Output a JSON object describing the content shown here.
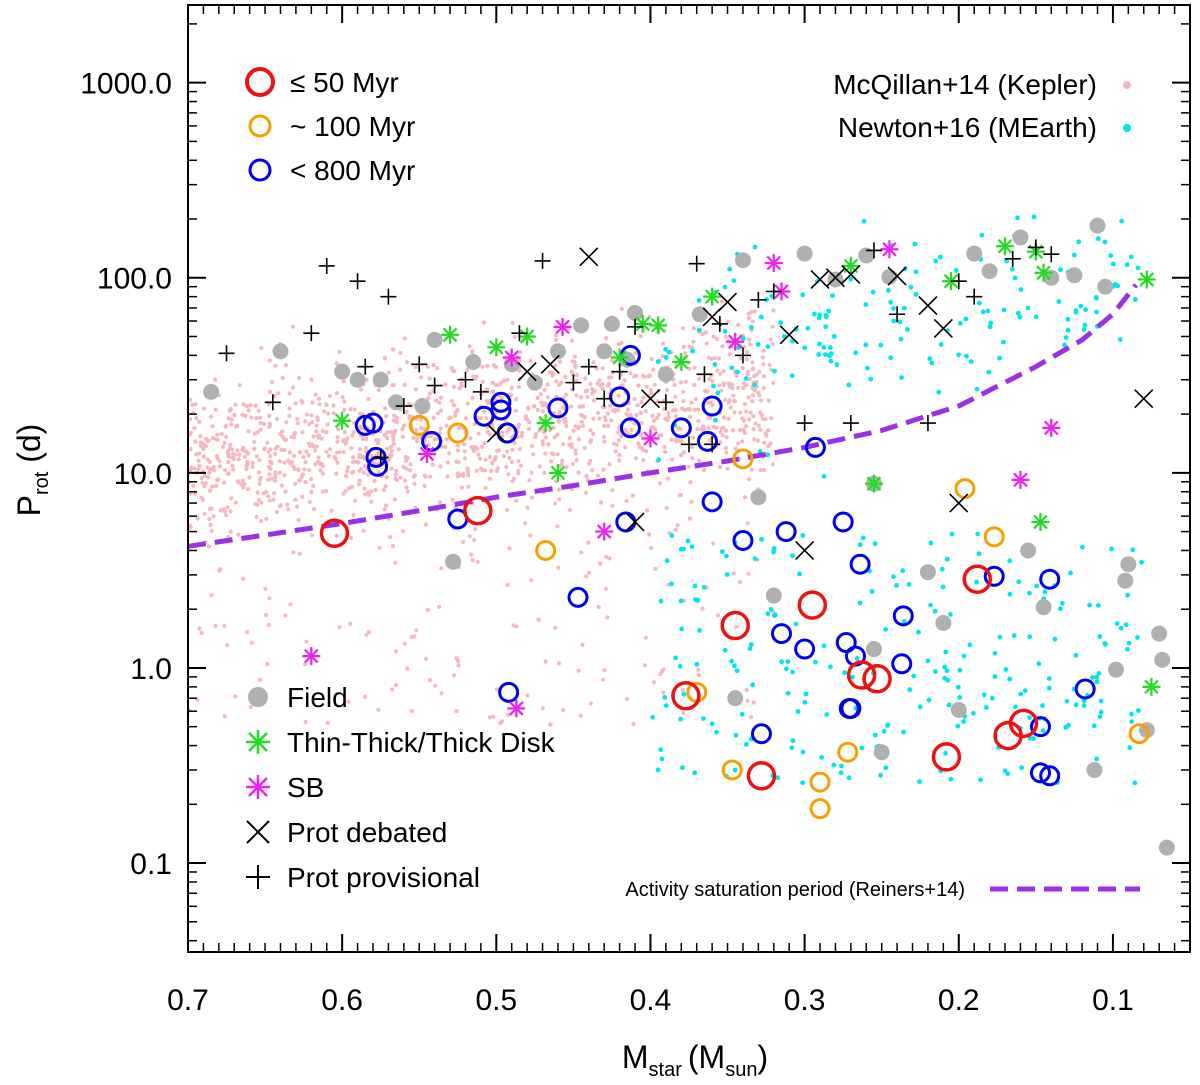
{
  "chart_data": {
    "type": "scatter",
    "xlabel": {
      "main": "M",
      "sub1": "star",
      "paren": "(M",
      "sub2": "sun",
      "close": ")"
    },
    "ylabel": {
      "main": "P",
      "sub": "rot",
      "rest": " (d)"
    },
    "x_axis": {
      "reversed": true,
      "min": 0.05,
      "max": 0.7,
      "ticks": [
        "0.7",
        "0.6",
        "0.5",
        "0.4",
        "0.3",
        "0.2",
        "0.1"
      ]
    },
    "y_axis": {
      "scale": "log",
      "min": 0.035,
      "max": 2500,
      "ticks": [
        "0.1",
        "1.0",
        "10.0",
        "100.0",
        "1000.0"
      ]
    },
    "grid": false,
    "legends": {
      "age": [
        {
          "label": "≤ 50 Myr",
          "color": "#ee1111"
        },
        {
          "label": "~ 100 Myr",
          "color": "#f5a000"
        },
        {
          "label": "< 800 Myr",
          "color": "#0000ee"
        }
      ],
      "reference": [
        {
          "label": "McQillan+14 (Kepler)",
          "color": "#f5b8c0"
        },
        {
          "label": "Newton+16 (MEarth)",
          "color": "#00e5ee"
        }
      ],
      "markers": [
        {
          "label": "Field",
          "color": "#b0b0b0"
        },
        {
          "label": "Thin-Thick/Thick Disk",
          "color": "#22dd22"
        },
        {
          "label": "SB",
          "color": "#ee22ee"
        },
        {
          "label": "Prot debated",
          "color": "#000000"
        },
        {
          "label": "Prot provisional",
          "color": "#000000"
        }
      ],
      "saturation": {
        "label": "Activity saturation period (Reiners+14)",
        "color": "#9b30e8"
      }
    },
    "saturation_curve": {
      "x": [
        0.7,
        0.65,
        0.6,
        0.55,
        0.5,
        0.45,
        0.4,
        0.35,
        0.3,
        0.25,
        0.2,
        0.15,
        0.12,
        0.1,
        0.085
      ],
      "y": [
        4.2,
        4.8,
        5.5,
        6.4,
        7.5,
        8.6,
        10.0,
        11.5,
        13.5,
        16.5,
        22,
        35,
        48,
        65,
        92
      ]
    },
    "series": [
      {
        "name": "≤ 50 Myr",
        "marker": "circle-large",
        "color": "#ee1111",
        "points": [
          [
            0.605,
            4.9
          ],
          [
            0.512,
            6.4
          ],
          [
            0.377,
            0.72
          ],
          [
            0.345,
            1.65
          ],
          [
            0.328,
            0.28
          ],
          [
            0.295,
            2.1
          ],
          [
            0.263,
            0.92
          ],
          [
            0.253,
            0.88
          ],
          [
            0.208,
            0.35
          ],
          [
            0.188,
            2.85
          ],
          [
            0.168,
            0.45
          ],
          [
            0.158,
            0.52
          ]
        ]
      },
      {
        "name": "~ 100 Myr",
        "marker": "circle",
        "color": "#f5a000",
        "points": [
          [
            0.55,
            17.5
          ],
          [
            0.525,
            16
          ],
          [
            0.468,
            4.0
          ],
          [
            0.37,
            0.75
          ],
          [
            0.347,
            0.3
          ],
          [
            0.34,
            11.8
          ],
          [
            0.29,
            0.26
          ],
          [
            0.29,
            0.19
          ],
          [
            0.272,
            0.37
          ],
          [
            0.196,
            8.3
          ],
          [
            0.177,
            4.7
          ],
          [
            0.083,
            0.46
          ]
        ]
      },
      {
        "name": "< 800 Myr",
        "marker": "circle",
        "color": "#0000ee",
        "points": [
          [
            0.585,
            17.5
          ],
          [
            0.58,
            18
          ],
          [
            0.578,
            12
          ],
          [
            0.577,
            10.8
          ],
          [
            0.542,
            14.5
          ],
          [
            0.525,
            5.8
          ],
          [
            0.508,
            19.5
          ],
          [
            0.497,
            23
          ],
          [
            0.497,
            21
          ],
          [
            0.493,
            16
          ],
          [
            0.492,
            0.75
          ],
          [
            0.46,
            21.5
          ],
          [
            0.447,
            2.3
          ],
          [
            0.42,
            24.5
          ],
          [
            0.416,
            5.6
          ],
          [
            0.413,
            17
          ],
          [
            0.413,
            40
          ],
          [
            0.38,
            17
          ],
          [
            0.363,
            14.5
          ],
          [
            0.36,
            7.1
          ],
          [
            0.36,
            22
          ],
          [
            0.34,
            4.5
          ],
          [
            0.328,
            0.46
          ],
          [
            0.315,
            1.5
          ],
          [
            0.312,
            5
          ],
          [
            0.3,
            1.25
          ],
          [
            0.293,
            13.5
          ],
          [
            0.275,
            5.6
          ],
          [
            0.273,
            1.35
          ],
          [
            0.271,
            0.62
          ],
          [
            0.27,
            0.62
          ],
          [
            0.267,
            1.15
          ],
          [
            0.264,
            3.4
          ],
          [
            0.237,
            1.05
          ],
          [
            0.236,
            1.85
          ],
          [
            0.177,
            2.95
          ],
          [
            0.147,
            0.29
          ],
          [
            0.147,
            0.5
          ],
          [
            0.141,
            0.28
          ],
          [
            0.141,
            2.85
          ],
          [
            0.118,
            0.78
          ]
        ]
      },
      {
        "name": "Field",
        "marker": "filled-circle",
        "color": "#b0b0b0",
        "points": [
          [
            0.685,
            26
          ],
          [
            0.64,
            42
          ],
          [
            0.6,
            33
          ],
          [
            0.59,
            30
          ],
          [
            0.575,
            30
          ],
          [
            0.565,
            23
          ],
          [
            0.548,
            22
          ],
          [
            0.54,
            48
          ],
          [
            0.515,
            37
          ],
          [
            0.49,
            36
          ],
          [
            0.475,
            29
          ],
          [
            0.46,
            42
          ],
          [
            0.445,
            57
          ],
          [
            0.43,
            42
          ],
          [
            0.425,
            58
          ],
          [
            0.415,
            38
          ],
          [
            0.41,
            66
          ],
          [
            0.39,
            32
          ],
          [
            0.368,
            65
          ],
          [
            0.34,
            123
          ],
          [
            0.33,
            7.5
          ],
          [
            0.32,
            2.35
          ],
          [
            0.3,
            133
          ],
          [
            0.28,
            98
          ],
          [
            0.26,
            130
          ],
          [
            0.255,
            1.25
          ],
          [
            0.25,
            0.37
          ],
          [
            0.245,
            101
          ],
          [
            0.22,
            3.1
          ],
          [
            0.21,
            1.7
          ],
          [
            0.2,
            0.61
          ],
          [
            0.19,
            133
          ],
          [
            0.18,
            108
          ],
          [
            0.16,
            161
          ],
          [
            0.155,
            4.0
          ],
          [
            0.145,
            2.05
          ],
          [
            0.14,
            100
          ],
          [
            0.125,
            103
          ],
          [
            0.11,
            185
          ],
          [
            0.105,
            90
          ],
          [
            0.098,
            0.98
          ],
          [
            0.092,
            2.8
          ],
          [
            0.09,
            3.4
          ],
          [
            0.078,
            0.48
          ],
          [
            0.07,
            1.5
          ],
          [
            0.068,
            1.1
          ],
          [
            0.065,
            0.12
          ],
          [
            0.528,
            3.5
          ],
          [
            0.345,
            0.7
          ],
          [
            0.112,
            0.3
          ],
          [
            0.255,
            8.8
          ]
        ]
      },
      {
        "name": "Thin-Thick/Thick Disk",
        "marker": "asterisk",
        "color": "#22dd22",
        "points": [
          [
            0.6,
            18.5
          ],
          [
            0.53,
            51
          ],
          [
            0.5,
            44
          ],
          [
            0.48,
            50
          ],
          [
            0.468,
            18
          ],
          [
            0.46,
            10
          ],
          [
            0.42,
            39
          ],
          [
            0.405,
            58
          ],
          [
            0.395,
            57
          ],
          [
            0.38,
            37
          ],
          [
            0.36,
            80
          ],
          [
            0.27,
            115
          ],
          [
            0.255,
            8.8
          ],
          [
            0.205,
            96
          ],
          [
            0.17,
            145
          ],
          [
            0.15,
            136
          ],
          [
            0.145,
            106
          ],
          [
            0.147,
            5.6
          ],
          [
            0.078,
            98
          ],
          [
            0.075,
            0.8
          ]
        ]
      },
      {
        "name": "SB",
        "marker": "asterisk",
        "color": "#ee22ee",
        "points": [
          [
            0.62,
            1.15
          ],
          [
            0.545,
            12.5
          ],
          [
            0.49,
            39
          ],
          [
            0.487,
            0.62
          ],
          [
            0.457,
            56
          ],
          [
            0.43,
            5
          ],
          [
            0.4,
            15
          ],
          [
            0.345,
            47
          ],
          [
            0.32,
            119
          ],
          [
            0.315,
            85
          ],
          [
            0.245,
            140
          ],
          [
            0.16,
            9.2
          ],
          [
            0.14,
            17
          ]
        ]
      },
      {
        "name": "Prot debated",
        "marker": "x",
        "color": "#000000",
        "points": [
          [
            0.44,
            128
          ],
          [
            0.4,
            24
          ],
          [
            0.48,
            33
          ],
          [
            0.465,
            36
          ],
          [
            0.41,
            5.6
          ],
          [
            0.36,
            63
          ],
          [
            0.35,
            75
          ],
          [
            0.31,
            51
          ],
          [
            0.3,
            4
          ],
          [
            0.29,
            98
          ],
          [
            0.28,
            100
          ],
          [
            0.27,
            104
          ],
          [
            0.24,
            102
          ],
          [
            0.22,
            72
          ],
          [
            0.21,
            55
          ],
          [
            0.2,
            7
          ],
          [
            0.08,
            24
          ],
          [
            0.5,
            16
          ]
        ]
      },
      {
        "name": "Prot provisional",
        "marker": "plus",
        "color": "#000000",
        "points": [
          [
            0.675,
            41
          ],
          [
            0.645,
            23
          ],
          [
            0.62,
            52
          ],
          [
            0.61,
            115
          ],
          [
            0.585,
            35
          ],
          [
            0.59,
            96
          ],
          [
            0.57,
            80
          ],
          [
            0.56,
            22
          ],
          [
            0.55,
            36
          ],
          [
            0.54,
            28
          ],
          [
            0.52,
            30
          ],
          [
            0.51,
            26
          ],
          [
            0.485,
            52
          ],
          [
            0.47,
            122
          ],
          [
            0.45,
            29
          ],
          [
            0.44,
            35
          ],
          [
            0.43,
            24
          ],
          [
            0.42,
            33
          ],
          [
            0.41,
            56
          ],
          [
            0.39,
            23
          ],
          [
            0.375,
            14
          ],
          [
            0.37,
            118
          ],
          [
            0.365,
            32
          ],
          [
            0.355,
            58
          ],
          [
            0.34,
            40
          ],
          [
            0.33,
            77
          ],
          [
            0.32,
            85
          ],
          [
            0.3,
            18
          ],
          [
            0.27,
            18
          ],
          [
            0.255,
            138
          ],
          [
            0.24,
            65
          ],
          [
            0.22,
            18
          ],
          [
            0.2,
            96
          ],
          [
            0.19,
            80
          ],
          [
            0.165,
            125
          ],
          [
            0.15,
            143
          ],
          [
            0.14,
            132
          ],
          [
            0.575,
            12
          ],
          [
            0.36,
            14
          ]
        ]
      }
    ],
    "reference_scatter": {
      "mcquillan_color": "#f5b8c0",
      "newton_color": "#00e5ee"
    }
  }
}
